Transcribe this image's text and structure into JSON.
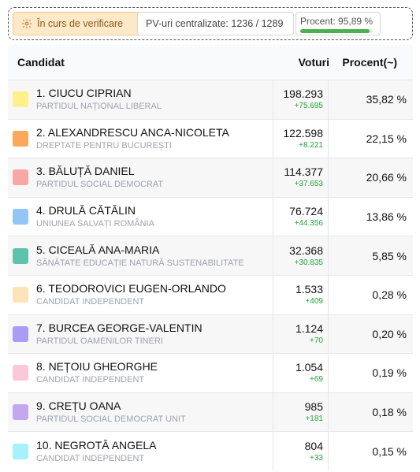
{
  "status": {
    "verify_label": "În curs de verificare",
    "pv_label": "PV-uri centralizate: 1236 / 1289",
    "percent_label": "Procent: 95,89 %",
    "progress_fraction": 0.9589
  },
  "table": {
    "headers": {
      "candidate": "Candidat",
      "votes": "Voturi",
      "percent": "Procent(~)"
    },
    "rows": [
      {
        "name": "1. CIUCU CIPRIAN",
        "party": "PARTIDUL NAȚIONAL LIBERAL",
        "votes": "198.293",
        "delta": "+75.695",
        "percent": "35,82 %",
        "color": "#fef08a"
      },
      {
        "name": "2. ALEXANDRESCU ANCA-NICOLETA",
        "party": "DREPTATE PENTRU BUCUREȘTI",
        "votes": "122.598",
        "delta": "+8.221",
        "percent": "22,15 %",
        "color": "#fba85a"
      },
      {
        "name": "3. BĂLUȚĂ DANIEL",
        "party": "PARTIDUL SOCIAL DEMOCRAT",
        "votes": "114.377",
        "delta": "+37.653",
        "percent": "20,66 %",
        "color": "#f9a6a6"
      },
      {
        "name": "4. DRULĂ CĂTĂLIN",
        "party": "UNIUNEA SALVAȚI ROMÂNIA",
        "votes": "76.724",
        "delta": "+44.356",
        "percent": "13,86 %",
        "color": "#93c5f5"
      },
      {
        "name": "5. CICEALĂ ANA-MARIA",
        "party": "SĂNĂTATE EDUCAȚIE NATURĂ SUSTENABILITATE",
        "votes": "32.368",
        "delta": "+30.835",
        "percent": "5,85 %",
        "color": "#5fc2ae"
      },
      {
        "name": "6. TEODOROVICI EUGEN-ORLANDO",
        "party": "CANDIDAT INDEPENDENT",
        "votes": "1.533",
        "delta": "+409",
        "percent": "0,28 %",
        "color": "#fde4b8"
      },
      {
        "name": "7. BURCEA GEORGE-VALENTIN",
        "party": "PARTIDUL OAMENILOR TINERI",
        "votes": "1.124",
        "delta": "+70",
        "percent": "0,20 %",
        "color": "#a99cf5"
      },
      {
        "name": "8. NEȚOIU GHEORGHE",
        "party": "CANDIDAT INDEPENDENT",
        "votes": "1.054",
        "delta": "+69",
        "percent": "0,19 %",
        "color": "#fbc8d8"
      },
      {
        "name": "9. CREȚU OANA",
        "party": "PARTIDUL SOCIAL DEMOCRAT UNIT",
        "votes": "985",
        "delta": "+181",
        "percent": "0,18 %",
        "color": "#c4a8ee"
      },
      {
        "name": "10. NEGROTĂ ANGELA",
        "party": "CANDIDAT INDEPENDENT",
        "votes": "804",
        "delta": "+33",
        "percent": "0,15 %",
        "color": "#a5f2fa"
      }
    ]
  }
}
